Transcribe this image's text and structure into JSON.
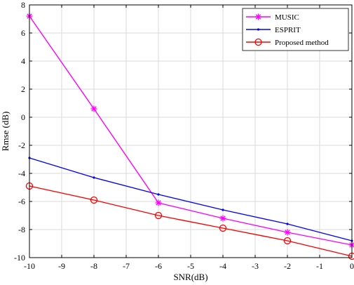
{
  "chart_data": {
    "type": "line",
    "x": [
      -10,
      -8,
      -6,
      -4,
      -2,
      0
    ],
    "series": [
      {
        "name": "MUSIC",
        "values": [
          7.2,
          0.6,
          -6.1,
          -7.2,
          -8.2,
          -9.1
        ],
        "color": "#ff00ff",
        "marker": "asterisk"
      },
      {
        "name": "ESPRIT",
        "values": [
          -2.9,
          -4.3,
          -5.5,
          -6.6,
          -7.6,
          -8.8
        ],
        "color": "#0000ff",
        "marker": "dot"
      },
      {
        "name": "Proposed method",
        "values": [
          -4.9,
          -5.9,
          -7.0,
          -7.9,
          -8.8,
          -9.9
        ],
        "color": "#ff0000",
        "marker": "circle"
      }
    ],
    "xlabel": "SNR(dB)",
    "ylabel": "Rmse (dB)",
    "xlim": [
      -10,
      0
    ],
    "ylim": [
      -10,
      8
    ],
    "xticks": [
      -10,
      -9,
      -8,
      -7,
      -6,
      -5,
      -4,
      -3,
      -2,
      -1,
      0
    ],
    "yticks": [
      -10,
      -8,
      -6,
      -4,
      -2,
      0,
      2,
      4,
      6,
      8
    ],
    "grid": true,
    "legend_position": "top-right"
  }
}
